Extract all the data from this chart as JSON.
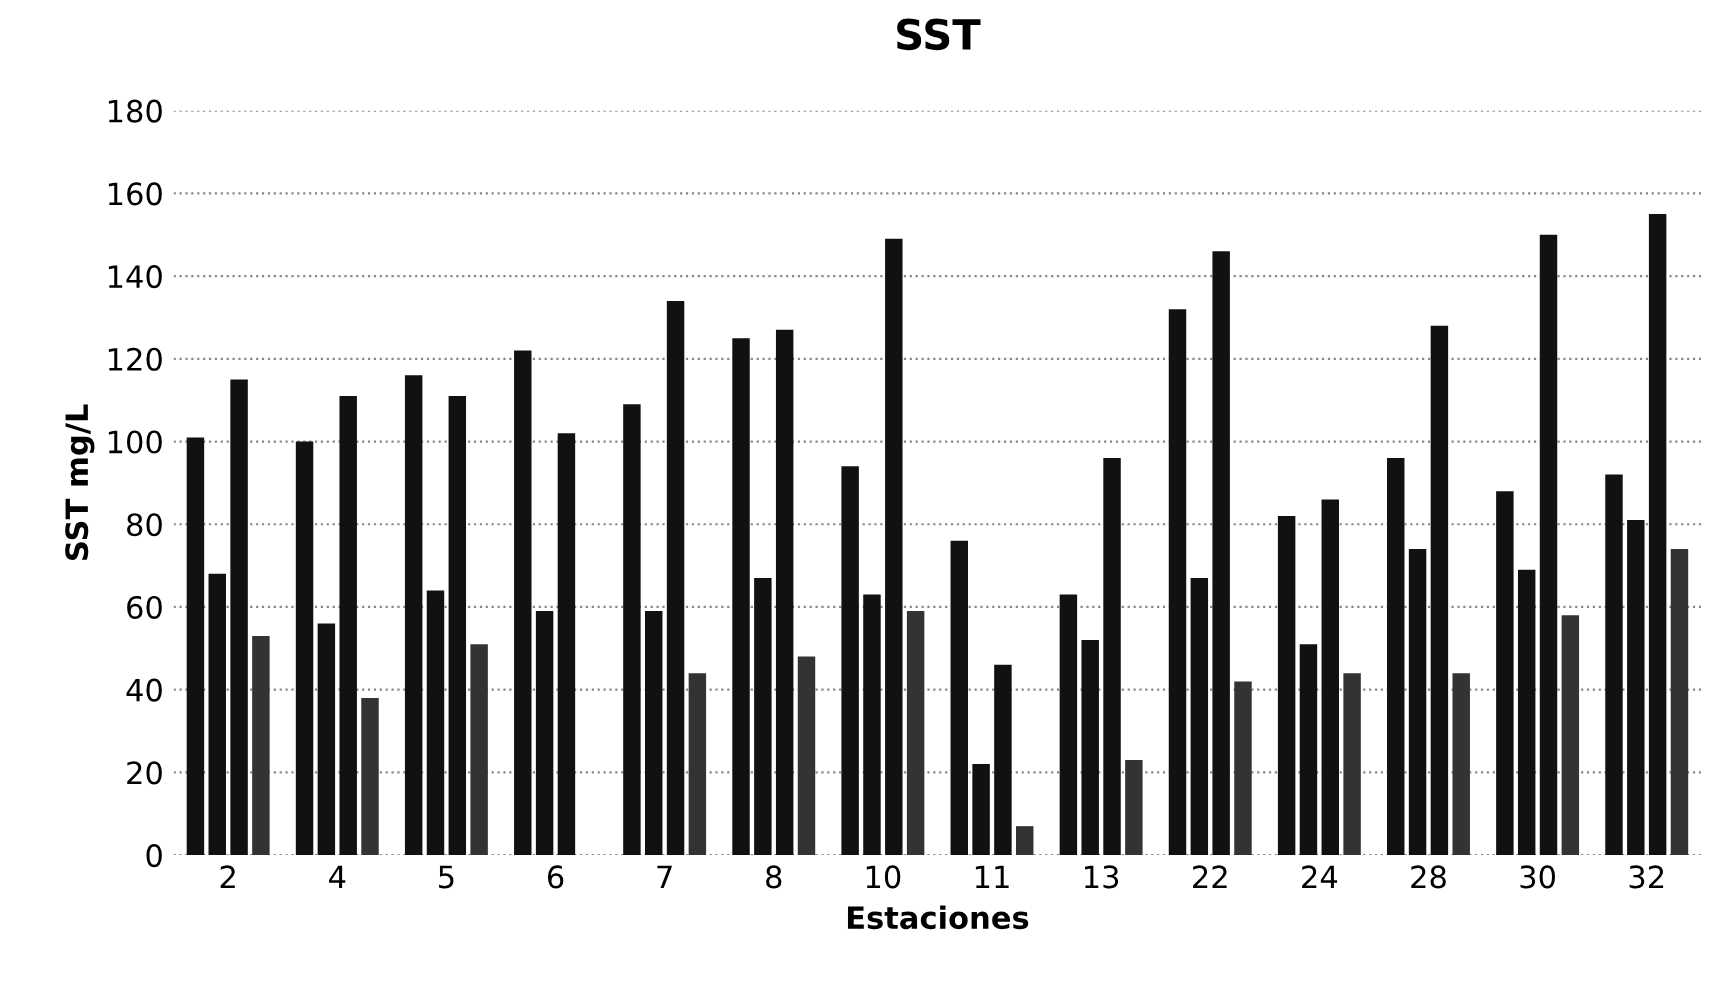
{
  "chart_data": {
    "type": "bar",
    "title": "SST",
    "xlabel": "Estaciones",
    "ylabel": "SST mg/L",
    "categories": [
      "2",
      "4",
      "5",
      "6",
      "7",
      "8",
      "10",
      "11",
      "13",
      "22",
      "24",
      "28",
      "30",
      "32"
    ],
    "series": [
      {
        "color": "#111111",
        "values": [
          101,
          100,
          116,
          122,
          109,
          125,
          94,
          76,
          63,
          132,
          82,
          96,
          88,
          92
        ]
      },
      {
        "color": "#111111",
        "values": [
          68,
          56,
          64,
          59,
          59,
          67,
          63,
          22,
          52,
          67,
          51,
          74,
          69,
          81
        ]
      },
      {
        "color": "#111111",
        "values": [
          115,
          111,
          111,
          102,
          134,
          127,
          149,
          46,
          96,
          146,
          86,
          128,
          150,
          155
        ]
      },
      {
        "color": "#333333",
        "values": [
          53,
          38,
          51,
          null,
          44,
          48,
          59,
          7,
          23,
          42,
          44,
          44,
          58,
          74
        ]
      }
    ],
    "ylim": [
      0,
      180
    ],
    "yticks": [
      0,
      20,
      40,
      60,
      80,
      100,
      120,
      140,
      160,
      180
    ],
    "grid": "y",
    "legend": false
  }
}
